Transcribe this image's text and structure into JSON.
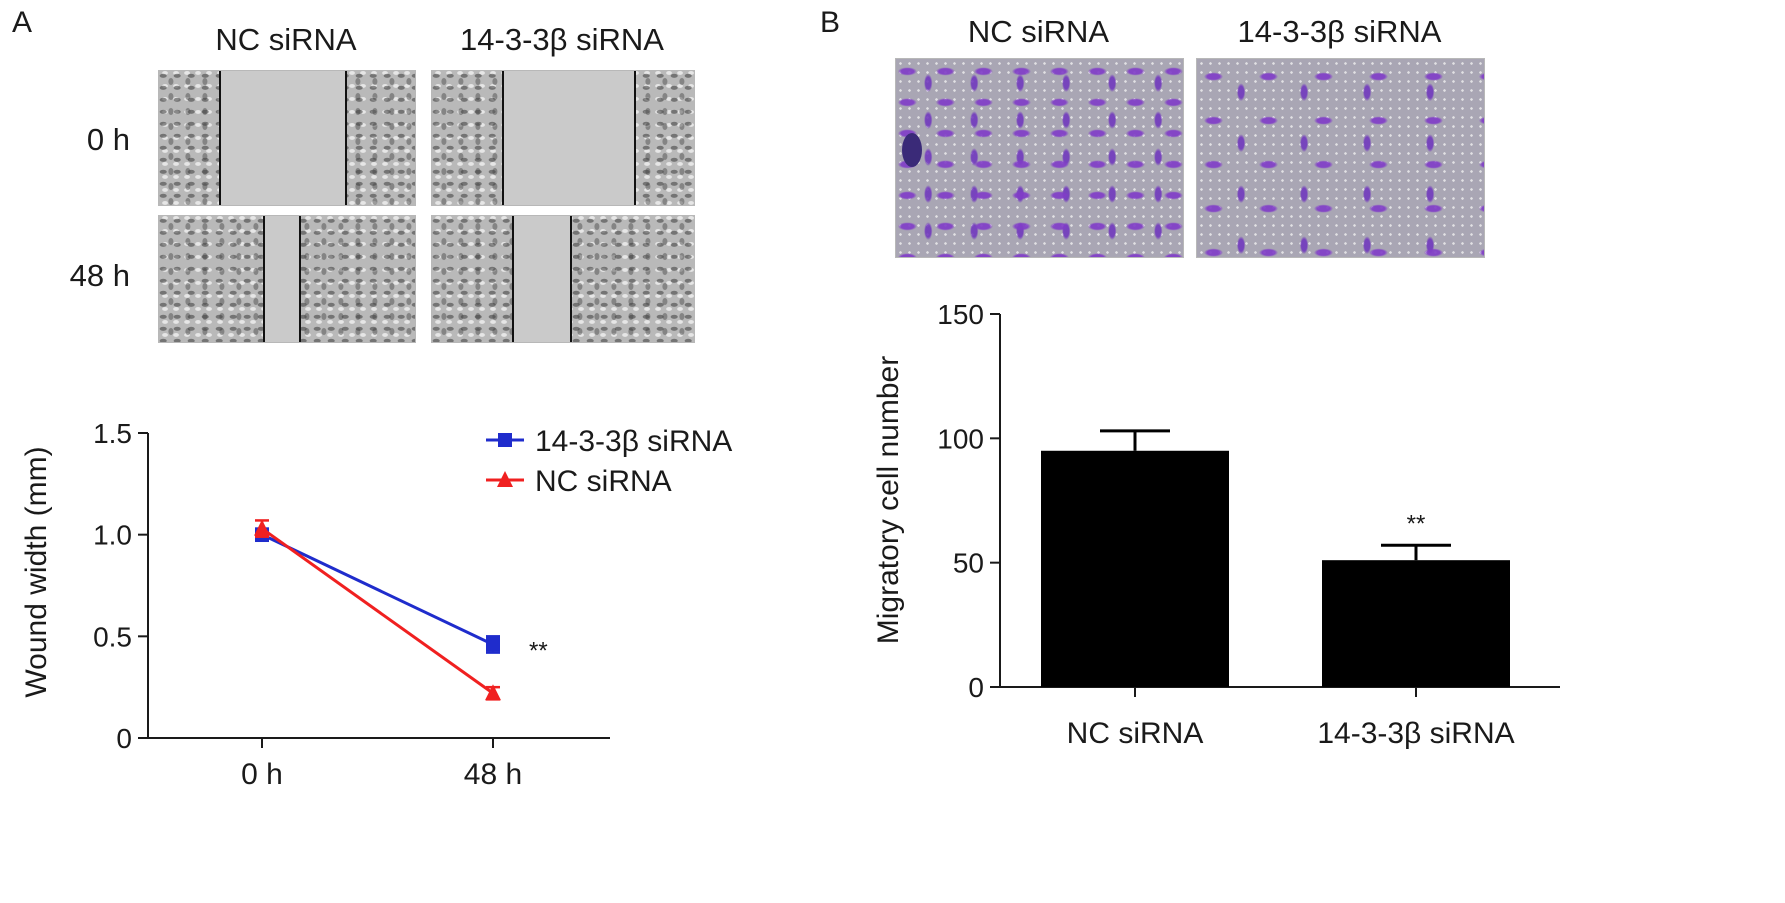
{
  "panel_a": {
    "letter": "A",
    "columns": [
      "NC siRNA",
      "14-3-3β siRNA"
    ],
    "rows": [
      "0 h",
      "48 h"
    ]
  },
  "panel_b": {
    "letter": "B",
    "columns": [
      "NC siRNA",
      "14-3-3β siRNA"
    ]
  },
  "colors": {
    "series_blue": "#1f2ccc",
    "series_red": "#f02020",
    "bar_fill": "#000000"
  },
  "chart_data": [
    {
      "type": "line",
      "ylabel": "Wound width (mm)",
      "xlabel": "",
      "x": [
        "0 h",
        "48 h"
      ],
      "ylim": [
        0,
        1.5
      ],
      "yticks": [
        "0",
        "0.5",
        "1.0",
        "1.5"
      ],
      "legend_position": "top-right",
      "series": [
        {
          "name": "14-3-3β siRNA",
          "marker": "square",
          "color": "#1f2ccc",
          "values": [
            1.0,
            0.46
          ],
          "errors": [
            0.03,
            0.04
          ]
        },
        {
          "name": "NC siRNA",
          "marker": "triangle",
          "color": "#f02020",
          "values": [
            1.03,
            0.22
          ],
          "errors": [
            0.04,
            0.03
          ]
        }
      ],
      "annotations": [
        {
          "text": "**",
          "x": "48 h",
          "y": 0.46
        }
      ]
    },
    {
      "type": "bar",
      "ylabel": "Migratory cell number",
      "xlabel": "",
      "categories": [
        "NC siRNA",
        "14-3-3β siRNA"
      ],
      "values": [
        95,
        51
      ],
      "errors": [
        8,
        6
      ],
      "ylim": [
        0,
        150
      ],
      "yticks": [
        "0",
        "50",
        "100",
        "150"
      ],
      "annotations": [
        {
          "text": "**",
          "category": "14-3-3β siRNA"
        }
      ]
    }
  ]
}
